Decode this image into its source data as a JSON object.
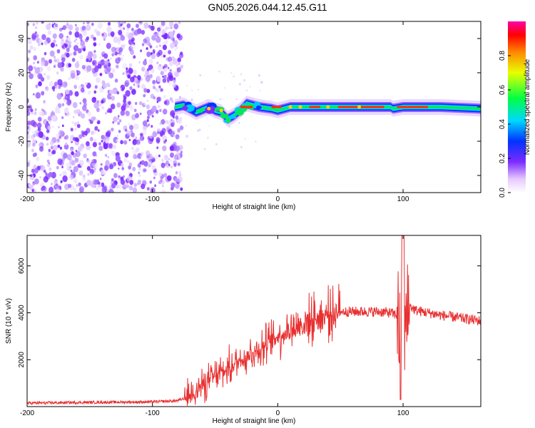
{
  "title": "GN05.2026.044.12.45.G11",
  "colors": {
    "noise": "#7b2bff",
    "snr_line": "#e83030",
    "axis": "#000000"
  },
  "chart_data": [
    {
      "type": "heatmap",
      "title": "GN05.2026.044.12.45.G11",
      "xlabel": "Height of straight line (km)",
      "ylabel": "Frequency (Hz)",
      "xlim": [
        -200,
        162
      ],
      "ylim": [
        -50,
        50
      ],
      "xticks": [
        -200,
        -100,
        0,
        100
      ],
      "xtick_labels": [
        "-200",
        "-100",
        "0",
        "100"
      ],
      "yticks": [
        -40,
        -20,
        0,
        20,
        40
      ],
      "ytick_labels": [
        "-40",
        "-20",
        "0",
        "20",
        "40"
      ],
      "colorbar": {
        "label": "Normalized spectral amplitude",
        "range": [
          0,
          1
        ],
        "ticks": [
          0.0,
          0.2,
          0.4,
          0.6,
          0.8
        ],
        "tick_labels": [
          "0.0",
          "0.2",
          "0.4",
          "0.6",
          "0.8"
        ]
      },
      "noise_region_x": [
        -200,
        -80
      ],
      "signal_track": {
        "x": [
          -82,
          -75,
          -65,
          -55,
          -50,
          -45,
          -40,
          -35,
          -30,
          -25,
          -15,
          -5,
          0,
          10,
          30,
          60,
          90,
          92,
          100,
          130,
          162
        ],
        "freq": [
          0,
          1,
          -3,
          0,
          -2,
          -3,
          -7,
          -5,
          -2,
          2,
          0,
          -1,
          -2,
          0,
          0,
          0,
          0,
          -1,
          0,
          0,
          -1
        ]
      }
    },
    {
      "type": "line",
      "title": "",
      "xlabel": "Height of straight line (km)",
      "ylabel": "SNR (10 * v/v)",
      "xlim": [
        -200,
        162
      ],
      "ylim": [
        0,
        7300
      ],
      "xticks": [
        -200,
        -100,
        0,
        100
      ],
      "xtick_labels": [
        "-200",
        "-100",
        "0",
        "100"
      ],
      "yticks": [
        2000,
        4000,
        6000
      ],
      "ytick_labels": [
        "2000",
        "4000",
        "6000"
      ],
      "envelope": {
        "x": [
          -200,
          -150,
          -100,
          -80,
          -72,
          -60,
          -50,
          -40,
          -30,
          -20,
          -10,
          0,
          10,
          20,
          30,
          40,
          50,
          60,
          70,
          80,
          90,
          95,
          98,
          100,
          102,
          105,
          110,
          130,
          162
        ],
        "y": [
          150,
          180,
          200,
          250,
          400,
          900,
          1300,
          1600,
          2000,
          2300,
          2600,
          3000,
          3300,
          3500,
          3800,
          3950,
          4050,
          4050,
          4050,
          4050,
          4000,
          3900,
          3000,
          4200,
          3200,
          4300,
          4100,
          3900,
          3650
        ]
      }
    }
  ]
}
